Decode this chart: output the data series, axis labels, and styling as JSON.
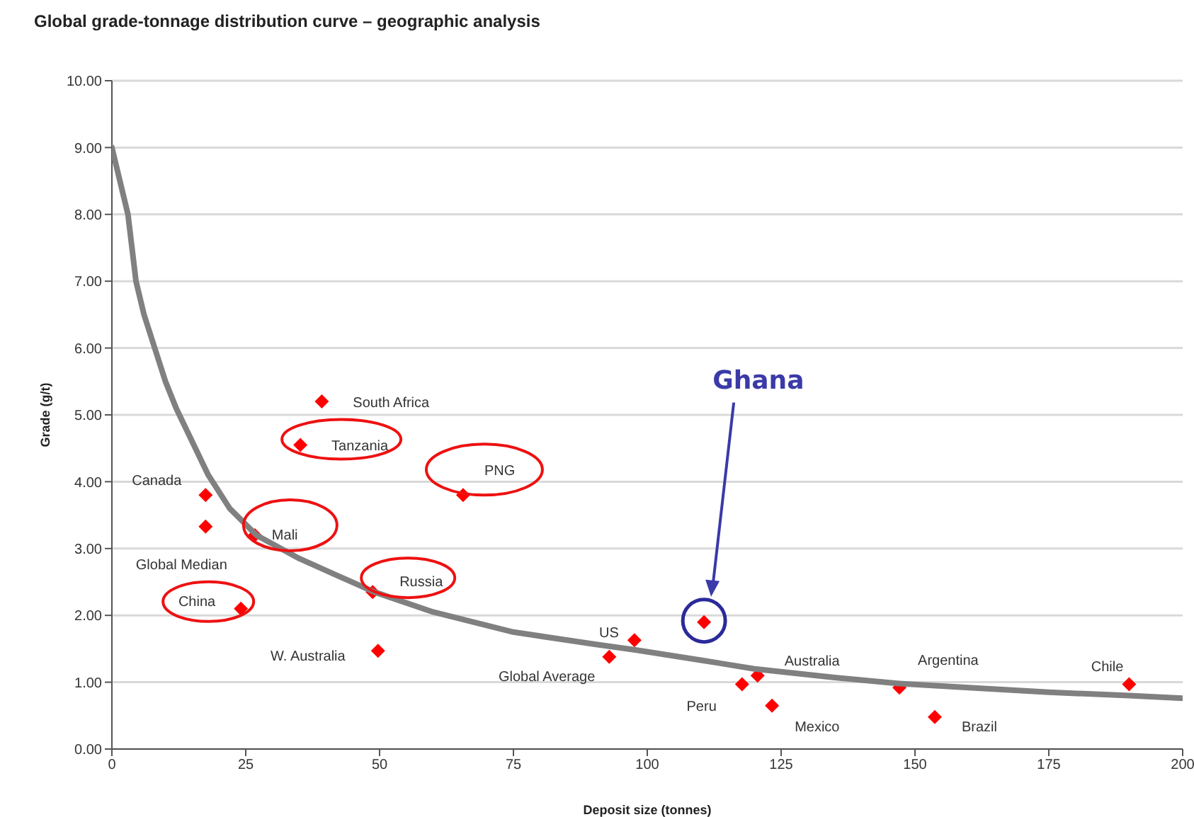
{
  "chart_data": {
    "type": "scatter",
    "title": "Global grade-tonnage distribution curve – geographic analysis",
    "xlabel": "Deposit size (tonnes)",
    "ylabel": "Grade (g/t)",
    "xlim": [
      0,
      200
    ],
    "xticks": [
      0,
      25,
      50,
      75,
      100,
      125,
      150,
      175,
      200
    ],
    "ylim": [
      0,
      10
    ],
    "yticks": [
      {
        "value": 0,
        "label": "0.00"
      },
      {
        "value": 1,
        "label": "1.00"
      },
      {
        "value": 2,
        "label": "2.00"
      },
      {
        "value": 3,
        "label": "3.00"
      },
      {
        "value": 4,
        "label": "4.00"
      },
      {
        "value": 5,
        "label": "5.00"
      },
      {
        "value": 6,
        "label": "6.00"
      },
      {
        "value": 7,
        "label": "7.00"
      },
      {
        "value": 8,
        "label": "8.00"
      },
      {
        "value": 9,
        "label": "9.00"
      },
      {
        "value": 10,
        "label": "10.00"
      }
    ],
    "grid": "y",
    "series": [
      {
        "marker": "diamond",
        "color": "#ff0000",
        "x": [
          39.2,
          35.2,
          17.5,
          17.5,
          26.7,
          65.6,
          48.7,
          24.1,
          49.7,
          97.6,
          92.9,
          110.6,
          120.6,
          117.7,
          123.3,
          147.1,
          153.7,
          190
        ],
        "values": [
          5.2,
          4.55,
          3.8,
          3.33,
          3.2,
          3.8,
          2.35,
          2.1,
          1.47,
          1.63,
          1.38,
          1.9,
          1.1,
          0.97,
          0.65,
          0.92,
          0.48,
          0.97
        ]
      },
      {
        "type": "line",
        "marker": "none",
        "color": "#808080",
        "x": [
          0,
          1.5,
          3,
          4.5,
          6,
          8,
          10,
          12,
          15,
          18,
          22,
          27,
          35,
          42,
          49,
          60,
          75,
          90,
          98,
          110,
          120,
          135,
          147,
          160,
          175,
          190,
          200
        ],
        "values": [
          9,
          8.5,
          8,
          7,
          6.5,
          6,
          5.5,
          5.1,
          4.6,
          4.1,
          3.6,
          3.2,
          2.85,
          2.6,
          2.35,
          2.05,
          1.75,
          1.57,
          1.48,
          1.33,
          1.2,
          1.07,
          0.98,
          0.92,
          0.85,
          0.8,
          0.76
        ]
      }
    ],
    "annotations": [
      {
        "text": "South Africa",
        "x": 39.2,
        "y": 5.2
      },
      {
        "text": "Tanzania",
        "x": 35.2,
        "y": 4.55
      },
      {
        "text": "Canada",
        "x": 17.5,
        "y": 3.8
      },
      {
        "text": "Global Median",
        "x": 17.5,
        "y": 3.33
      },
      {
        "text": "Mali",
        "x": 26.7,
        "y": 3.2
      },
      {
        "text": "PNG",
        "x": 65.6,
        "y": 3.8
      },
      {
        "text": "Russia",
        "x": 48.7,
        "y": 2.35
      },
      {
        "text": "China",
        "x": 24.1,
        "y": 2.1
      },
      {
        "text": "W. Australia",
        "x": 49.7,
        "y": 1.47
      },
      {
        "text": "US",
        "x": 97.6,
        "y": 1.63
      },
      {
        "text": "Global Average",
        "x": 92.9,
        "y": 1.38
      },
      "Ghana",
      {
        "text": "Australia",
        "x": 120.6,
        "y": 1.1
      },
      {
        "text": "Peru",
        "x": 117.7,
        "y": 0.97
      },
      {
        "text": "Mexico",
        "x": 123.3,
        "y": 0.65
      },
      {
        "text": "Argentina",
        "x": 147.1,
        "y": 0.92
      },
      {
        "text": "Brazil",
        "x": 153.7,
        "y": 0.48
      },
      {
        "text": "Chile",
        "x": 190,
        "y": 0.97
      }
    ]
  }
}
